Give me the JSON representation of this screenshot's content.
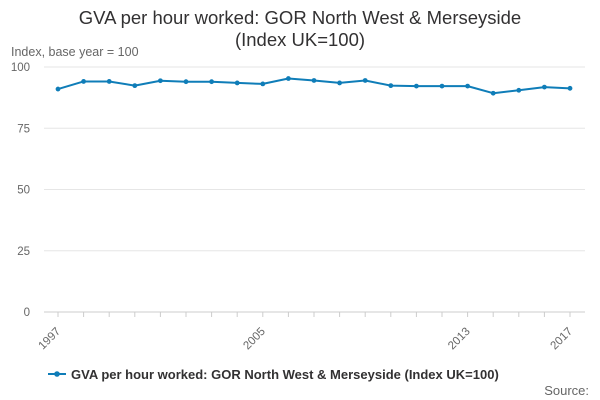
{
  "chart_data": {
    "type": "line",
    "title_lines": [
      "GVA per hour worked: GOR North West & Merseyside",
      "(Index UK=100)"
    ],
    "ylabel": "Index, base year = 100",
    "x": [
      1997,
      1998,
      1999,
      2000,
      2001,
      2002,
      2003,
      2004,
      2005,
      2006,
      2007,
      2008,
      2009,
      2010,
      2011,
      2012,
      2013,
      2014,
      2015,
      2016,
      2017
    ],
    "x_tick_labels": [
      "1997",
      "2005",
      "2013",
      "2017"
    ],
    "y_ticks": [
      0,
      25,
      50,
      75,
      100
    ],
    "ylim": [
      0,
      100
    ],
    "grid": true,
    "legend_position": "bottom",
    "series": [
      {
        "name": "GVA per hour worked: GOR North West & Merseyside (Index UK=100)",
        "color": "#0f7db8",
        "values": [
          91.0,
          94.1,
          94.1,
          92.4,
          94.4,
          94.0,
          94.0,
          93.5,
          93.1,
          95.3,
          94.5,
          93.5,
          94.5,
          92.4,
          92.2,
          92.2,
          92.2,
          89.3,
          90.5,
          91.8,
          91.3
        ]
      }
    ],
    "source_label": "Source:"
  }
}
